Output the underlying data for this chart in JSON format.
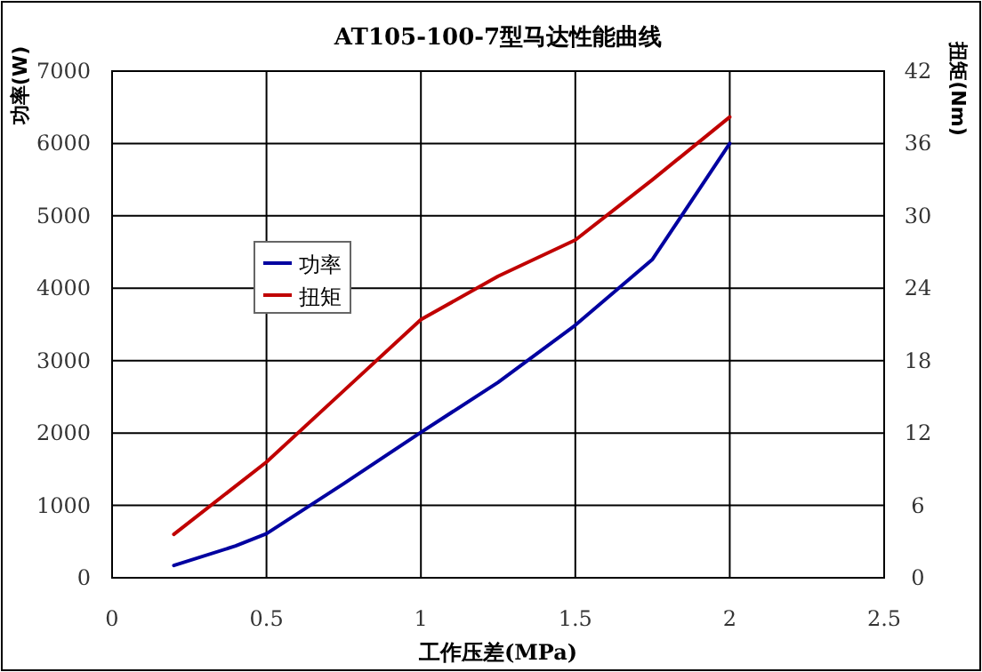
{
  "chart_data": {
    "type": "line",
    "title": "AT105-100-7型马达性能曲线",
    "xlabel": "工作压差(MPa)",
    "ylabel": "功率(W)",
    "y2label": "扭矩(Nm)",
    "series": [
      {
        "name": "功率",
        "color": "#0000a0",
        "x": [
          0.2,
          0.4,
          0.5,
          0.75,
          1.0,
          1.25,
          1.5,
          1.75,
          2.0
        ],
        "values": [
          170,
          440,
          610,
          1300,
          2010,
          2700,
          3490,
          4400,
          6000
        ]
      },
      {
        "name": "扭矩",
        "color": "#c00000",
        "axis": "y2",
        "x": [
          0.2,
          0.5,
          0.75,
          1.0,
          1.25,
          1.5,
          1.75,
          2.0
        ],
        "values": [
          3.6,
          9.6,
          15.5,
          21.4,
          25,
          28,
          33,
          38.2
        ]
      }
    ],
    "xlim": [
      0,
      2.5
    ],
    "xticks": [
      0,
      0.5,
      1,
      1.5,
      2,
      2.5
    ],
    "ylim": [
      0,
      7000
    ],
    "yticks": [
      0,
      1000,
      2000,
      3000,
      4000,
      5000,
      6000,
      7000
    ],
    "y2lim": [
      0,
      42
    ],
    "y2ticks": [
      0,
      6,
      12,
      18,
      24,
      30,
      36,
      42
    ],
    "grid": true,
    "legend": "left",
    "marker": "none",
    "line_style": "solid"
  }
}
